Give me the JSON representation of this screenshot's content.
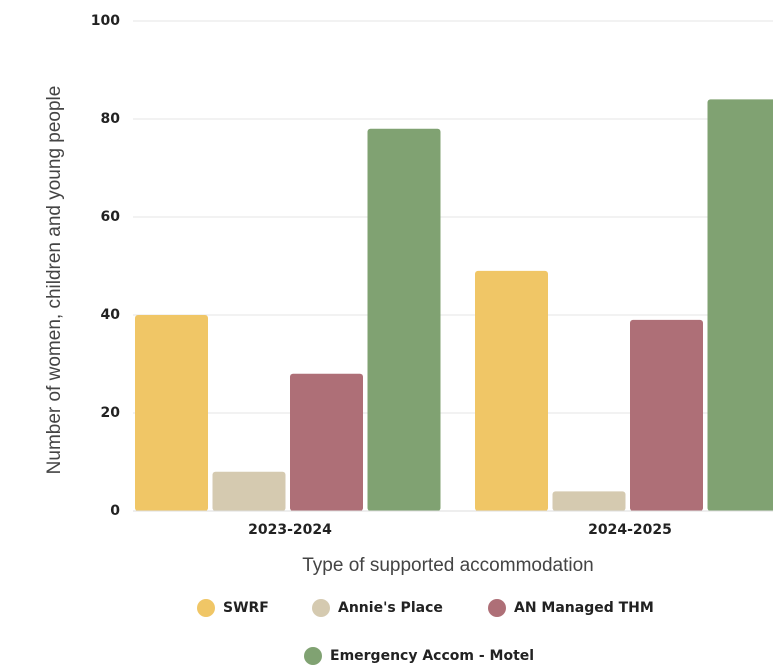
{
  "chart_data": {
    "type": "bar",
    "categories": [
      "2023-2024",
      "2024-2025"
    ],
    "series": [
      {
        "name": "SWRF",
        "color": "#f0c666",
        "values": [
          40,
          49
        ]
      },
      {
        "name": "Annie's Place",
        "color": "#d5cab0",
        "values": [
          8,
          4
        ]
      },
      {
        "name": "AN Managed THM",
        "color": "#ae6f77",
        "values": [
          28,
          39
        ]
      },
      {
        "name": "Emergency Accom - Motel",
        "color": "#80a272",
        "values": [
          78,
          84
        ]
      }
    ],
    "x_label": "Type of supported accommodation",
    "y_label": "Number of women, children and young people",
    "ylim": [
      0,
      100
    ],
    "yticks": [
      0,
      20,
      40,
      60,
      80,
      100
    ],
    "grid": true,
    "legend": "bottom"
  }
}
